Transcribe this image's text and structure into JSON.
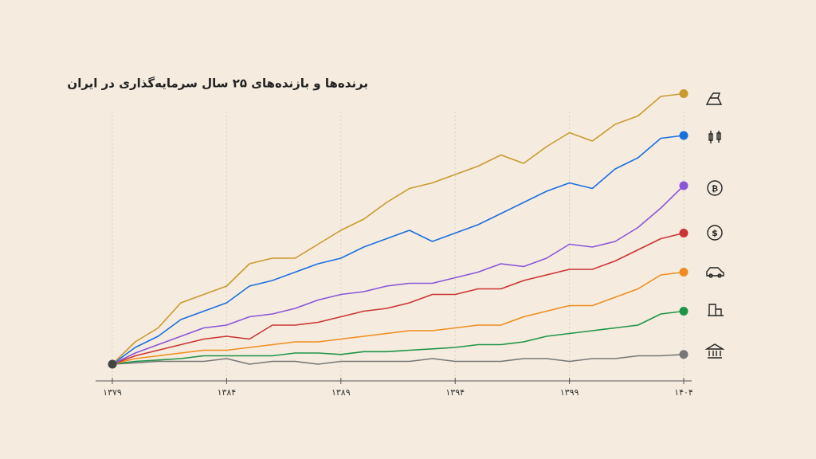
{
  "chart_data": {
    "type": "line",
    "title": "برنده‌ها و بازنده‌های ۲۵ سال سرمایه‌گذاری در ایران",
    "x": [
      1379,
      1380,
      1381,
      1382,
      1383,
      1384,
      1385,
      1386,
      1387,
      1388,
      1389,
      1390,
      1391,
      1392,
      1393,
      1394,
      1395,
      1396,
      1397,
      1398,
      1399,
      1400,
      1401,
      1402,
      1403,
      1404
    ],
    "xlim": [
      1379,
      1404
    ],
    "xticks": [
      {
        "value": 1379,
        "label": "۱۳۷۹"
      },
      {
        "value": 1384,
        "label": "۱۳۸۴"
      },
      {
        "value": 1389,
        "label": "۱۳۸۹"
      },
      {
        "value": 1394,
        "label": "۱۳۹۴"
      },
      {
        "value": 1399,
        "label": "۱۳۹۹"
      },
      {
        "value": 1404,
        "label": "۱۴۰۴"
      }
    ],
    "ylim": [
      0,
      100
    ],
    "grid": true,
    "series": [
      {
        "color": "#c99a2e",
        "values": [
          0,
          8,
          13,
          22,
          25,
          28,
          36,
          38,
          38,
          43,
          48,
          52,
          58,
          63,
          65,
          68,
          71,
          75,
          72,
          78,
          83,
          80,
          86,
          89,
          96,
          97
        ]
      },
      {
        "color": "#1a6fe0",
        "values": [
          0,
          6,
          10,
          16,
          19,
          22,
          28,
          30,
          33,
          36,
          38,
          42,
          45,
          48,
          44,
          47,
          50,
          54,
          58,
          62,
          65,
          63,
          70,
          74,
          81,
          82
        ]
      },
      {
        "color": "#8a55d8",
        "values": [
          0,
          4,
          7,
          10,
          13,
          14,
          17,
          18,
          20,
          23,
          25,
          26,
          28,
          29,
          29,
          31,
          33,
          36,
          35,
          38,
          43,
          42,
          44,
          49,
          56,
          64
        ]
      },
      {
        "color": "#cc3333",
        "values": [
          0,
          3,
          5,
          7,
          9,
          10,
          9,
          14,
          14,
          15,
          17,
          19,
          20,
          22,
          25,
          25,
          27,
          27,
          30,
          32,
          34,
          34,
          37,
          41,
          45,
          47
        ]
      },
      {
        "color": "#f08c1e",
        "values": [
          0,
          2,
          3,
          4,
          5,
          5,
          6,
          7,
          8,
          8,
          9,
          10,
          11,
          12,
          12,
          13,
          14,
          14,
          17,
          19,
          21,
          21,
          24,
          27,
          32,
          33
        ]
      },
      {
        "color": "#1e9448",
        "values": [
          0,
          1,
          1.5,
          2,
          3,
          3,
          3,
          3,
          4,
          4,
          3.5,
          4.5,
          4.5,
          5,
          5.5,
          6,
          7,
          7,
          8,
          10,
          11,
          12,
          13,
          14,
          18,
          19
        ]
      },
      {
        "color": "#777777",
        "values": [
          0,
          0.5,
          1,
          1,
          1,
          2,
          0,
          1,
          1,
          0,
          1,
          1,
          1,
          1,
          2,
          1,
          1,
          1,
          2,
          2,
          1,
          2,
          2,
          3,
          3,
          3.5
        ]
      }
    ]
  }
}
